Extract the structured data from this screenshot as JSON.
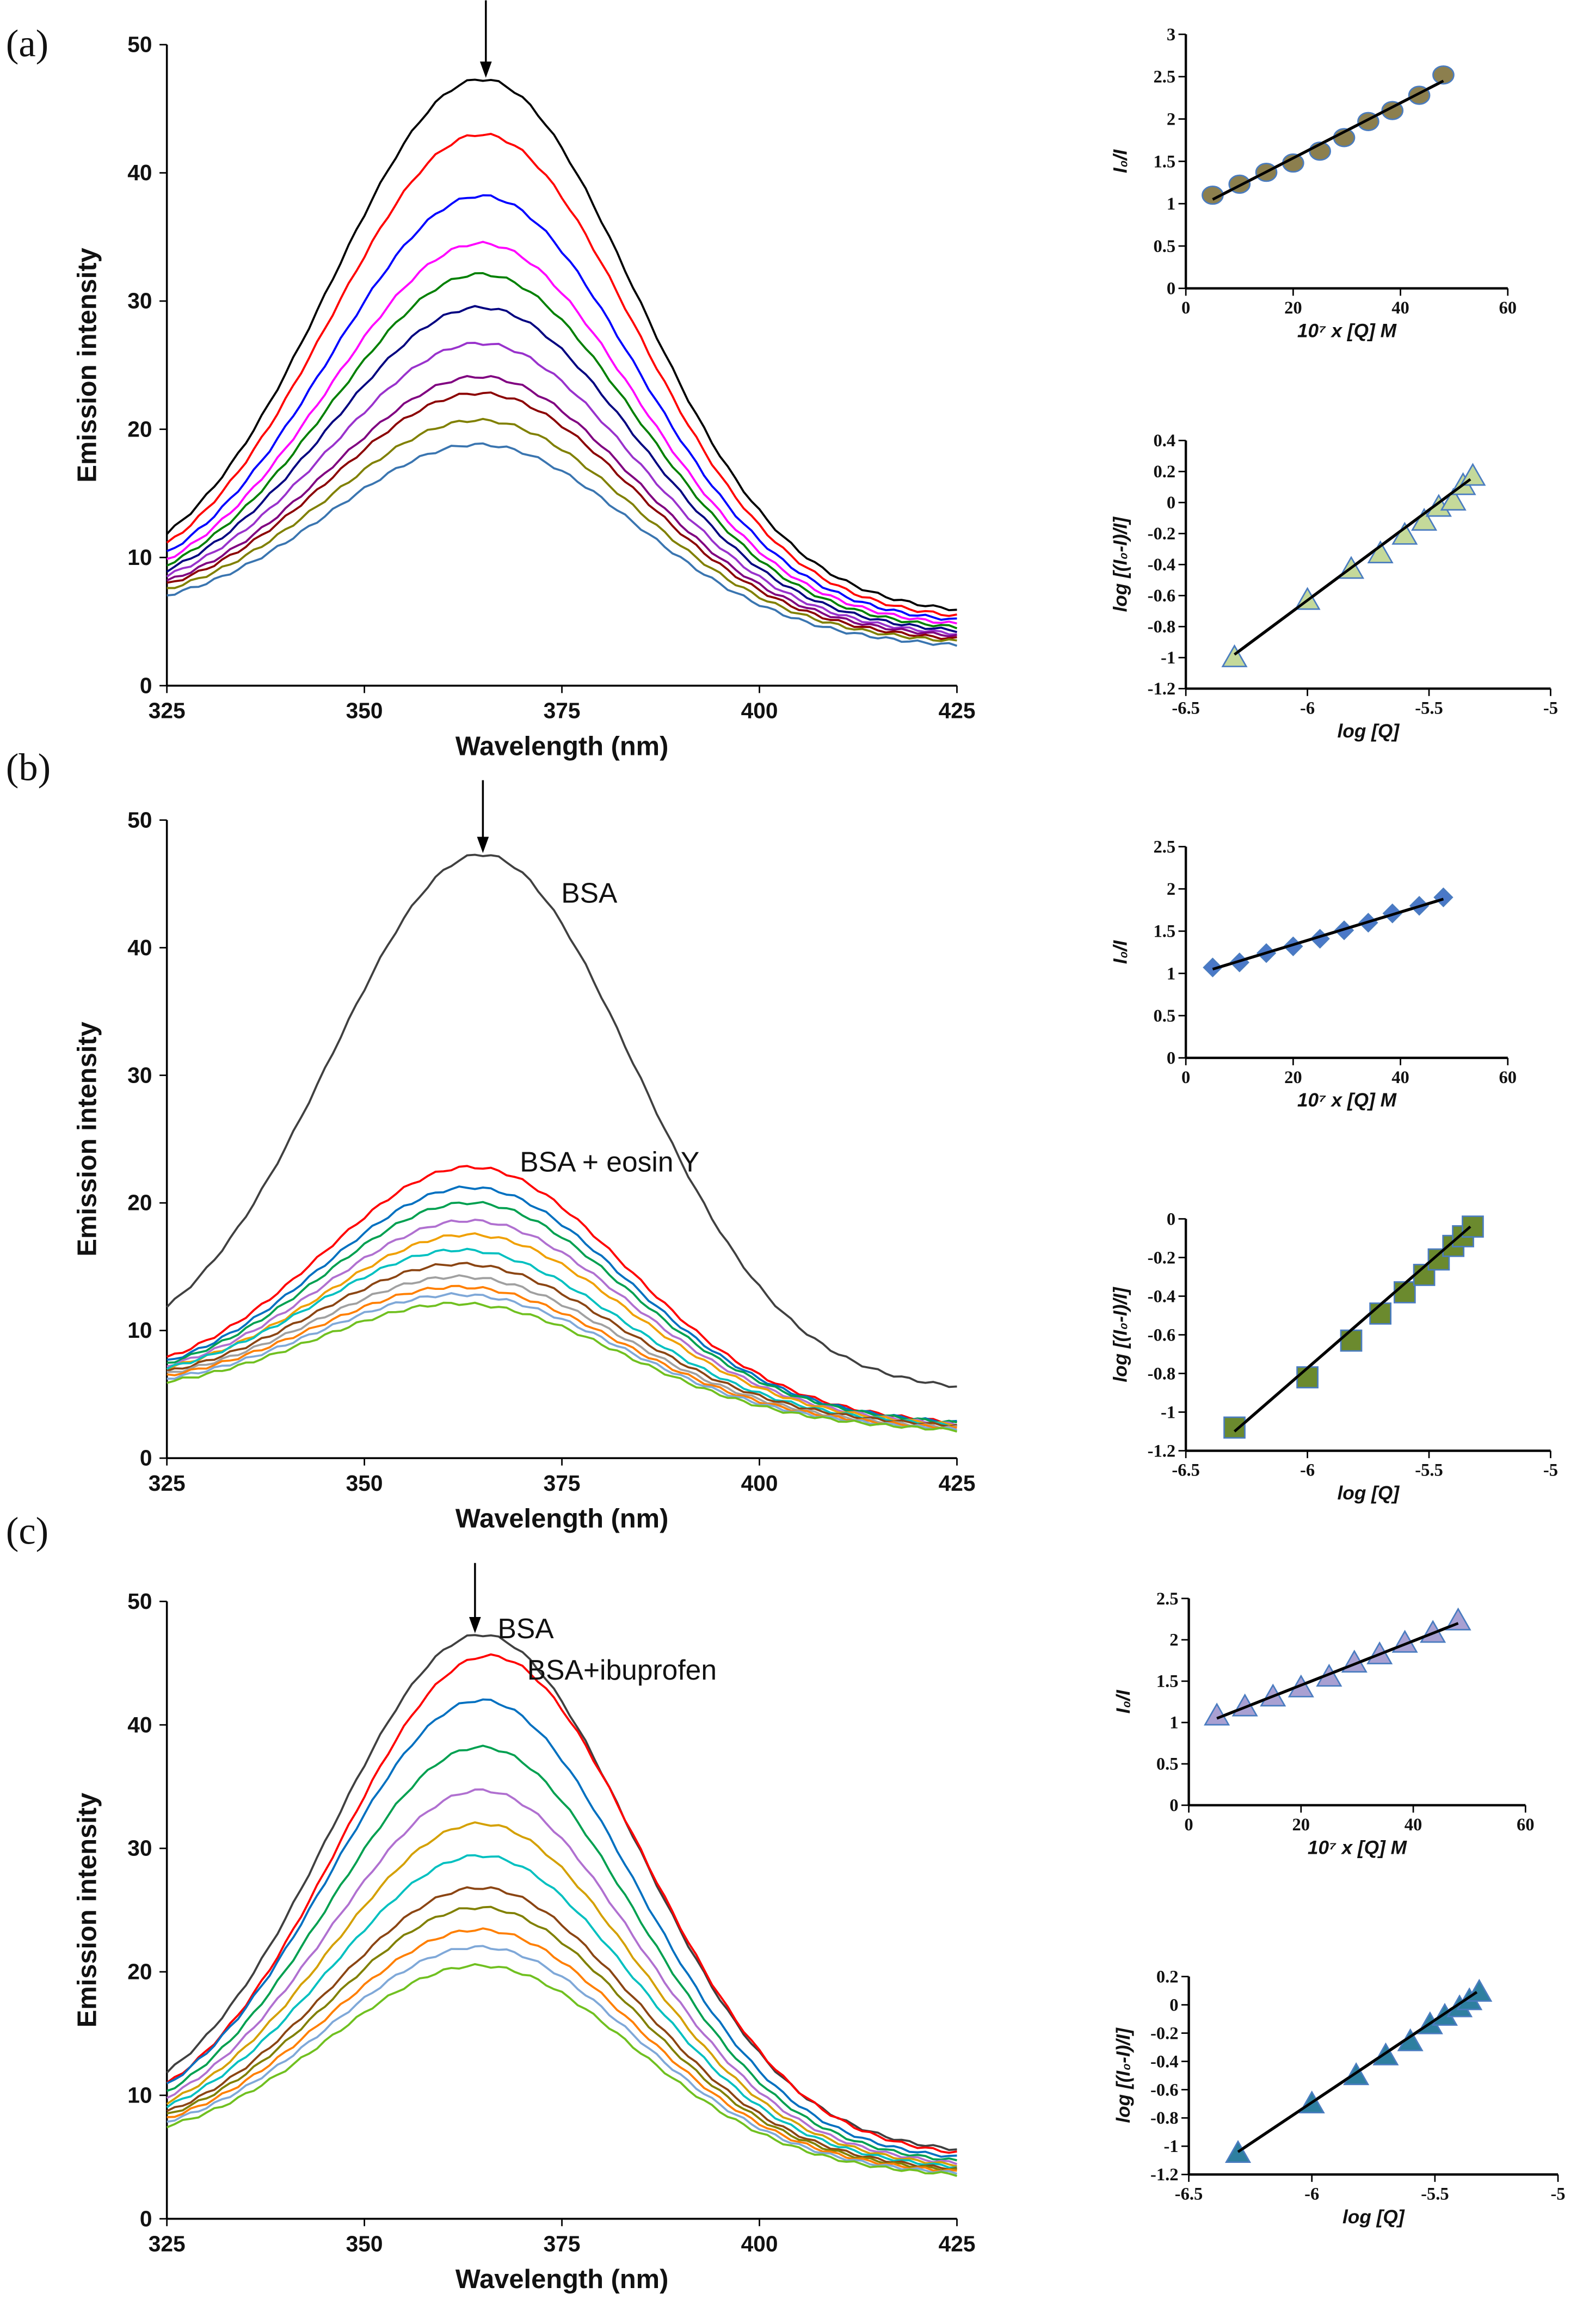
{
  "panels": [
    "(a)",
    "(b)",
    "(c)"
  ],
  "chart_data": [
    {
      "type": "line",
      "panel": "(a)",
      "xlabel": "Wavelength (nm)",
      "ylabel": "Emission intensity",
      "xlim": [
        325,
        425
      ],
      "ylim": [
        0,
        50
      ],
      "xticks": [
        325,
        350,
        375,
        400,
        425
      ],
      "yticks": [
        0,
        10,
        20,
        30,
        40,
        50
      ],
      "annotations": [],
      "arrow_at": 365,
      "series": [
        {
          "color": "#000000",
          "start": 10.0,
          "peak": 47.3,
          "peak_wl": 365,
          "end": 8.3
        },
        {
          "color": "#ff0000",
          "start": 9.4,
          "peak": 43.0,
          "peak_wl": 365,
          "end": 7.6
        },
        {
          "color": "#0000ff",
          "start": 8.9,
          "peak": 38.2,
          "peak_wl": 365,
          "end": 7.0
        },
        {
          "color": "#ff00ff",
          "start": 8.5,
          "peak": 34.5,
          "peak_wl": 365,
          "end": 6.5
        },
        {
          "color": "#008000",
          "start": 8.2,
          "peak": 32.1,
          "peak_wl": 365,
          "end": 6.1
        },
        {
          "color": "#000080",
          "start": 7.9,
          "peak": 29.5,
          "peak_wl": 365,
          "end": 5.7
        },
        {
          "color": "#9932cc",
          "start": 7.6,
          "peak": 26.7,
          "peak_wl": 365,
          "end": 5.3
        },
        {
          "color": "#800080",
          "start": 7.3,
          "peak": 24.1,
          "peak_wl": 365,
          "end": 5.0
        },
        {
          "color": "#8b0000",
          "start": 7.1,
          "peak": 22.8,
          "peak_wl": 365,
          "end": 4.7
        },
        {
          "color": "#808000",
          "start": 6.8,
          "peak": 20.7,
          "peak_wl": 365,
          "end": 4.4
        },
        {
          "color": "#3a75b0",
          "start": 6.4,
          "peak": 18.8,
          "peak_wl": 365,
          "end": 4.0
        }
      ]
    },
    {
      "type": "scatter",
      "panel": "(a)",
      "marker": "circle",
      "marker_color": "#8c7f4e",
      "xlabel": "10⁷ x [Q] M",
      "ylabel": "I₀/I",
      "xlim": [
        0,
        60
      ],
      "ylim": [
        0,
        3
      ],
      "xticks": [
        0,
        20,
        40,
        60
      ],
      "yticks": [
        0,
        0.5,
        1,
        1.5,
        2,
        2.5,
        3
      ],
      "x": [
        5,
        10,
        15,
        20,
        25,
        29.5,
        34,
        38.5,
        43.5,
        48
      ],
      "y": [
        1.1,
        1.23,
        1.37,
        1.48,
        1.62,
        1.78,
        1.97,
        2.1,
        2.28,
        2.52
      ],
      "fit": [
        [
          5,
          1.05
        ],
        [
          48,
          2.45
        ]
      ]
    },
    {
      "type": "scatter",
      "panel": "(a)",
      "marker": "triangle",
      "marker_color": "#c4d99a",
      "xlabel": "log [Q]",
      "ylabel": "log [(I₀-I)/I]",
      "xlim": [
        -6.5,
        -5
      ],
      "ylim": [
        -1.2,
        0.4
      ],
      "xticks": [
        -6.5,
        -6,
        -5.5,
        -5
      ],
      "yticks": [
        -1.2,
        -1,
        -0.8,
        -0.6,
        -0.4,
        -0.2,
        0,
        0.2,
        0.4
      ],
      "x": [
        -6.3,
        -6.0,
        -5.82,
        -5.7,
        -5.6,
        -5.52,
        -5.46,
        -5.4,
        -5.36,
        -5.32
      ],
      "y": [
        -1.0,
        -0.63,
        -0.43,
        -0.33,
        -0.21,
        -0.12,
        -0.03,
        0.01,
        0.11,
        0.17
      ],
      "fit": [
        [
          -6.3,
          -0.98
        ],
        [
          -5.33,
          0.15
        ]
      ]
    },
    {
      "type": "line",
      "panel": "(b)",
      "xlabel": "Wavelength (nm)",
      "ylabel": "Emission intensity",
      "xlim": [
        325,
        425
      ],
      "ylim": [
        0,
        50
      ],
      "xticks": [
        325,
        350,
        375,
        400,
        425
      ],
      "yticks": [
        0,
        10,
        20,
        30,
        40,
        50
      ],
      "annotations": [
        "BSA",
        "BSA + eosin Y"
      ],
      "arrow_at": 365,
      "series": [
        {
          "color": "#404040",
          "start": 10.0,
          "peak": 47.3,
          "peak_wl": 365,
          "end": 8.0
        },
        {
          "color": "#ff0000",
          "start": 6.8,
          "peak": 22.8,
          "peak_wl": 364,
          "end": 3.9
        },
        {
          "color": "#0070c0",
          "start": 6.6,
          "peak": 21.2,
          "peak_wl": 364,
          "end": 3.8
        },
        {
          "color": "#00a050",
          "start": 6.5,
          "peak": 20.0,
          "peak_wl": 364,
          "end": 3.7
        },
        {
          "color": "#b070d0",
          "start": 6.4,
          "peak": 18.6,
          "peak_wl": 364,
          "end": 3.5
        },
        {
          "color": "#f0a000",
          "start": 6.3,
          "peak": 17.5,
          "peak_wl": 364,
          "end": 3.4
        },
        {
          "color": "#00c0c0",
          "start": 6.2,
          "peak": 16.3,
          "peak_wl": 363,
          "end": 3.3
        },
        {
          "color": "#8b4513",
          "start": 6.0,
          "peak": 15.2,
          "peak_wl": 363,
          "end": 3.2
        },
        {
          "color": "#a0a0a0",
          "start": 5.9,
          "peak": 14.2,
          "peak_wl": 363,
          "end": 3.0
        },
        {
          "color": "#ff7f00",
          "start": 5.8,
          "peak": 13.4,
          "peak_wl": 363,
          "end": 2.9
        },
        {
          "color": "#7fa8d8",
          "start": 5.6,
          "peak": 12.8,
          "peak_wl": 363,
          "end": 2.8
        },
        {
          "color": "#70c020",
          "start": 5.4,
          "peak": 12.1,
          "peak_wl": 363,
          "end": 2.7
        }
      ]
    },
    {
      "type": "scatter",
      "panel": "(b)",
      "marker": "diamond",
      "marker_color": "#4a78c8",
      "xlabel": "10⁷ x [Q] M",
      "ylabel": "I₀/I",
      "xlim": [
        0,
        60
      ],
      "ylim": [
        0,
        2.5
      ],
      "xticks": [
        0,
        20,
        40,
        60
      ],
      "yticks": [
        0,
        0.5,
        1,
        1.5,
        2,
        2.5
      ],
      "x": [
        5,
        10,
        15,
        20,
        25,
        29.5,
        34,
        38.5,
        43.5,
        48
      ],
      "y": [
        1.07,
        1.13,
        1.24,
        1.32,
        1.41,
        1.51,
        1.6,
        1.71,
        1.8,
        1.9
      ],
      "fit": [
        [
          5,
          1.05
        ],
        [
          48,
          1.88
        ]
      ]
    },
    {
      "type": "scatter",
      "panel": "(b)",
      "marker": "square",
      "marker_color": "#6b8a2e",
      "xlabel": "log [Q]",
      "ylabel": "log [(I₀-I)/I]",
      "xlim": [
        -6.5,
        -5
      ],
      "ylim": [
        -1.2,
        0
      ],
      "xticks": [
        -6.5,
        -6,
        -5.5,
        -5
      ],
      "yticks": [
        -1.2,
        -1,
        -0.8,
        -0.6,
        -0.4,
        -0.2,
        0
      ],
      "x": [
        -6.3,
        -6.0,
        -5.82,
        -5.7,
        -5.6,
        -5.52,
        -5.46,
        -5.4,
        -5.36,
        -5.32
      ],
      "y": [
        -1.08,
        -0.82,
        -0.63,
        -0.49,
        -0.38,
        -0.29,
        -0.21,
        -0.14,
        -0.09,
        -0.04
      ],
      "fit": [
        [
          -6.3,
          -1.1
        ],
        [
          -5.33,
          -0.04
        ]
      ]
    },
    {
      "type": "line",
      "panel": "(c)",
      "xlabel": "Wavelength (nm)",
      "ylabel": "Emission intensity",
      "xlim": [
        325,
        425
      ],
      "ylim": [
        0,
        50
      ],
      "xticks": [
        325,
        350,
        375,
        400,
        425
      ],
      "yticks": [
        0,
        10,
        20,
        30,
        40,
        50
      ],
      "annotations": [
        "BSA",
        "BSA+ibuprofen"
      ],
      "arrow_at": 364,
      "series": [
        {
          "color": "#404040",
          "start": 10.0,
          "peak": 47.3,
          "peak_wl": 365,
          "end": 8.0
        },
        {
          "color": "#ff0000",
          "start": 9.6,
          "peak": 45.6,
          "peak_wl": 366,
          "end": 7.6
        },
        {
          "color": "#0070c0",
          "start": 9.2,
          "peak": 42.0,
          "peak_wl": 365,
          "end": 7.1
        },
        {
          "color": "#00a050",
          "start": 8.8,
          "peak": 38.2,
          "peak_wl": 365,
          "end": 6.6
        },
        {
          "color": "#b070d0",
          "start": 8.5,
          "peak": 34.7,
          "peak_wl": 365,
          "end": 6.2
        },
        {
          "color": "#d4a000",
          "start": 8.2,
          "peak": 32.0,
          "peak_wl": 365,
          "end": 5.9
        },
        {
          "color": "#00c0c0",
          "start": 8.0,
          "peak": 29.4,
          "peak_wl": 365,
          "end": 5.6
        },
        {
          "color": "#8b4513",
          "start": 7.7,
          "peak": 26.8,
          "peak_wl": 365,
          "end": 5.3
        },
        {
          "color": "#808000",
          "start": 7.5,
          "peak": 25.2,
          "peak_wl": 365,
          "end": 5.1
        },
        {
          "color": "#ff7f00",
          "start": 7.3,
          "peak": 23.4,
          "peak_wl": 365,
          "end": 4.9
        },
        {
          "color": "#7fa8d8",
          "start": 7.1,
          "peak": 22.0,
          "peak_wl": 365,
          "end": 4.7
        },
        {
          "color": "#70c020",
          "start": 6.8,
          "peak": 20.5,
          "peak_wl": 365,
          "end": 4.5
        }
      ]
    },
    {
      "type": "scatter",
      "panel": "(c)",
      "marker": "triangle",
      "marker_color": "#a9a0d2",
      "xlabel": "10⁷ x [Q] M",
      "ylabel": "I₀/I",
      "xlim": [
        0,
        60
      ],
      "ylim": [
        0,
        2.5
      ],
      "xticks": [
        0,
        20,
        40,
        60
      ],
      "yticks": [
        0,
        0.5,
        1,
        1.5,
        2,
        2.5
      ],
      "x": [
        5,
        10,
        15,
        20,
        25,
        29.5,
        34,
        38.5,
        43.5,
        48
      ],
      "y": [
        1.08,
        1.19,
        1.31,
        1.42,
        1.55,
        1.72,
        1.82,
        1.96,
        2.08,
        2.23
      ],
      "fit": [
        [
          5,
          1.05
        ],
        [
          48,
          2.2
        ]
      ]
    },
    {
      "type": "scatter",
      "panel": "(c)",
      "marker": "triangle",
      "marker_color": "#2e7fa0",
      "xlabel": "log [Q]",
      "ylabel": "log [(I₀-I)/I]",
      "xlim": [
        -6.5,
        -5
      ],
      "ylim": [
        -1.2,
        0.2
      ],
      "xticks": [
        -6.5,
        -6,
        -5.5,
        -5
      ],
      "yticks": [
        -1.2,
        -1,
        -0.8,
        -0.6,
        -0.4,
        -0.2,
        0,
        0.2
      ],
      "x": [
        -6.3,
        -6.0,
        -5.82,
        -5.7,
        -5.6,
        -5.52,
        -5.46,
        -5.4,
        -5.36,
        -5.32
      ],
      "y": [
        -1.05,
        -0.7,
        -0.5,
        -0.36,
        -0.26,
        -0.14,
        -0.08,
        -0.02,
        0.03,
        0.09
      ],
      "fit": [
        [
          -6.3,
          -1.04
        ],
        [
          -5.33,
          0.09
        ]
      ]
    }
  ]
}
